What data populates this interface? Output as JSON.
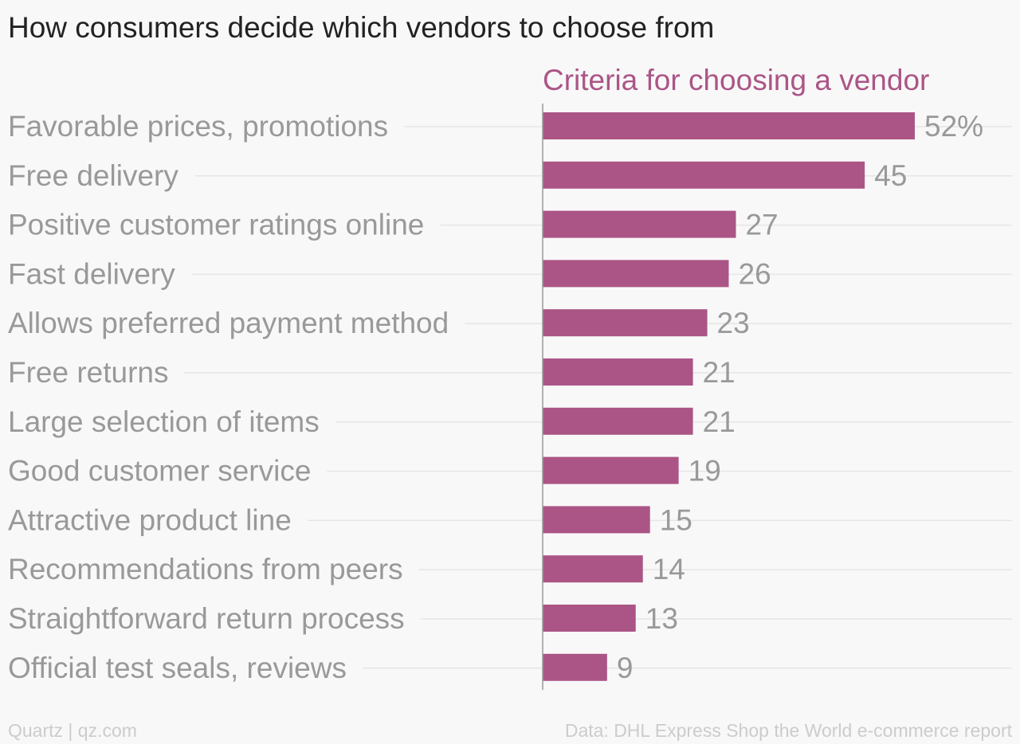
{
  "title": "How consumers decide which vendors to choose from",
  "footer": {
    "credit": "Quartz | qz.com",
    "source": "Data: DHL Express Shop the World e-commerce report"
  },
  "colors": {
    "bar": "#ab5586",
    "series_title": "#ab5586",
    "labels": "#999999",
    "gridline": "#e6e6e6",
    "axis": "#999999"
  },
  "chart_data": {
    "type": "bar",
    "orientation": "horizontal",
    "title": "How consumers decide which vendors to choose from",
    "series": [
      {
        "name": "Criteria for choosing a vendor",
        "values": [
          52,
          45,
          27,
          26,
          23,
          21,
          21,
          19,
          15,
          14,
          13,
          9
        ]
      }
    ],
    "categories": [
      "Favorable prices, promotions",
      "Free delivery",
      "Positive customer ratings online",
      "Fast delivery",
      "Allows preferred payment method",
      "Free returns",
      "Large selection of items",
      "Good customer service",
      "Attractive product line",
      "Recommendations from peers",
      "Straightforward return process",
      "Official test seals, reviews"
    ],
    "value_labels": [
      "52%",
      "45",
      "27",
      "26",
      "23",
      "21",
      "21",
      "19",
      "15",
      "14",
      "13",
      "9"
    ],
    "xlim": [
      0,
      52
    ],
    "grid": false,
    "legend": "none"
  }
}
